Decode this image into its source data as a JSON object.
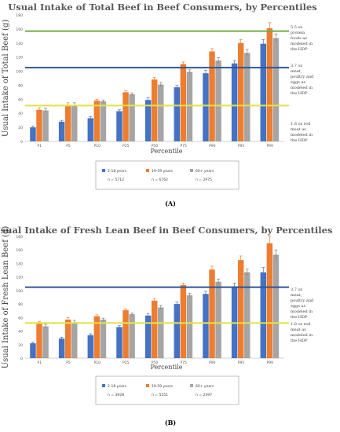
{
  "chart_data": [
    {
      "type": "bar",
      "title": "Usual Intake of Total Beef in Beef Consumers, by Percentiles",
      "xlabel": "Percentile",
      "ylabel": "Usual Intake of Total Beef (g)",
      "ylim": [
        0,
        180
      ],
      "yticks": [
        0,
        20,
        40,
        60,
        80,
        100,
        120,
        140,
        160,
        180
      ],
      "grid": false,
      "legend_position": "bottom-center",
      "panel_label": "(A)",
      "categories": [
        "P1",
        "P5",
        "P10",
        "P25",
        "P50",
        "P75",
        "P90",
        "P95",
        "P99"
      ],
      "series": [
        {
          "name": "2-18 years",
          "n": "n = 5712",
          "color": "#4472c4",
          "values": [
            20,
            28,
            33,
            43,
            59,
            77,
            97,
            111,
            139
          ],
          "errors": [
            2,
            2,
            2,
            2,
            3,
            3,
            4,
            4,
            6
          ]
        },
        {
          "name": "19-59 years",
          "n": "n = 6762",
          "color": "#ed7d31",
          "values": [
            45,
            52,
            58,
            70,
            88,
            110,
            128,
            140,
            161
          ],
          "errors": [
            3,
            3,
            2,
            2,
            3,
            3,
            4,
            5,
            8
          ]
        },
        {
          "name": "60+ years",
          "n": "n = 2975",
          "color": "#a5a5a5",
          "values": [
            44,
            52,
            57,
            67,
            81,
            99,
            115,
            126,
            147
          ],
          "errors": [
            3,
            3,
            2,
            2,
            3,
            3,
            4,
            5,
            6
          ]
        }
      ],
      "reference_lines": [
        {
          "value": 157,
          "color": "#70ad47",
          "label": "5.5 oz protein foods as modeled in the HDP"
        },
        {
          "value": 105,
          "color": "#2f5597",
          "label": "3.7 oz meat, poultry and eggs as modeled in the HDP"
        },
        {
          "value": 51,
          "color": "#e2e34a",
          "label": "1.8 oz red meat as modeled in the HDP"
        }
      ]
    },
    {
      "type": "bar",
      "title": "Usual Intake of Fresh Lean Beef in Beef Consumers, by Percentiles",
      "xlabel": "Percentile",
      "ylabel": "Usual Intake of Fresh Lean Beef (g)",
      "ylim": [
        0,
        180
      ],
      "yticks": [
        0,
        20,
        40,
        60,
        80,
        100,
        120,
        140,
        160,
        180
      ],
      "grid": false,
      "legend_position": "bottom-center",
      "panel_label": "(B)",
      "categories": [
        "P1",
        "P5",
        "P10",
        "P25",
        "P50",
        "P75",
        "P90",
        "P95",
        "P99"
      ],
      "series": [
        {
          "name": "2-18 years",
          "n": "n = 3928",
          "color": "#4472c4",
          "values": [
            22,
            29,
            34,
            46,
            63,
            80,
            95,
            106,
            127
          ],
          "errors": [
            2,
            2,
            2,
            2,
            3,
            3,
            4,
            5,
            7
          ]
        },
        {
          "name": "19-59 years",
          "n": "n = 5551",
          "color": "#ed7d31",
          "values": [
            51,
            57,
            62,
            71,
            85,
            108,
            131,
            145,
            170
          ],
          "errors": [
            3,
            3,
            2,
            2,
            3,
            3,
            5,
            6,
            10
          ]
        },
        {
          "name": "60+ years",
          "n": "n = 2397",
          "color": "#a5a5a5",
          "values": [
            47,
            53,
            57,
            65,
            75,
            93,
            113,
            127,
            153
          ],
          "errors": [
            3,
            3,
            2,
            2,
            3,
            3,
            4,
            5,
            7
          ]
        }
      ],
      "reference_lines": [
        {
          "value": 105,
          "color": "#2f5597",
          "label": "3.7 oz meat, poultry and eggs as modeled in the HDP"
        },
        {
          "value": 52,
          "color": "#e2e34a",
          "label": "1.8 oz red meat as modeled in the HDP"
        }
      ]
    }
  ]
}
